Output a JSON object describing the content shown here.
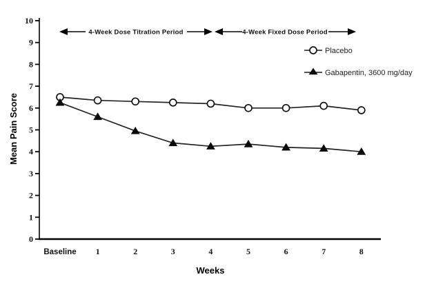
{
  "figure": {
    "background": "#ffffff",
    "ink_color": "#000000"
  },
  "chart_data": {
    "type": "line",
    "title": "",
    "xlabel": "Weeks",
    "ylabel": "Mean Pain Score",
    "categories": [
      "Baseline",
      "1",
      "2",
      "3",
      "4",
      "5",
      "6",
      "7",
      "8"
    ],
    "series": [
      {
        "name": "Placebo",
        "marker": "open-circle",
        "color": "#222222",
        "values": [
          6.5,
          6.35,
          6.3,
          6.25,
          6.2,
          6.0,
          6.0,
          6.1,
          5.9
        ]
      },
      {
        "name": "Gabapentin, 3600 mg/day",
        "marker": "filled-triangle",
        "color": "#222222",
        "values": [
          6.25,
          5.6,
          4.95,
          4.4,
          4.25,
          4.35,
          4.2,
          4.15,
          4.0
        ]
      }
    ],
    "ylim": [
      0,
      10
    ],
    "y_ticks": [
      0,
      1,
      2,
      3,
      4,
      5,
      6,
      7,
      8,
      9,
      10
    ],
    "grid": false,
    "legend_position": "upper-right",
    "annotations": [
      {
        "label": "4-Week Dose Titration Period",
        "x_start": "Baseline",
        "x_end": "4",
        "y": 9.5,
        "style": "double-arrow"
      },
      {
        "label": "4-Week Fixed Dose Period",
        "x_start": "4",
        "x_end": "8",
        "y": 9.5,
        "style": "double-arrow"
      }
    ]
  }
}
